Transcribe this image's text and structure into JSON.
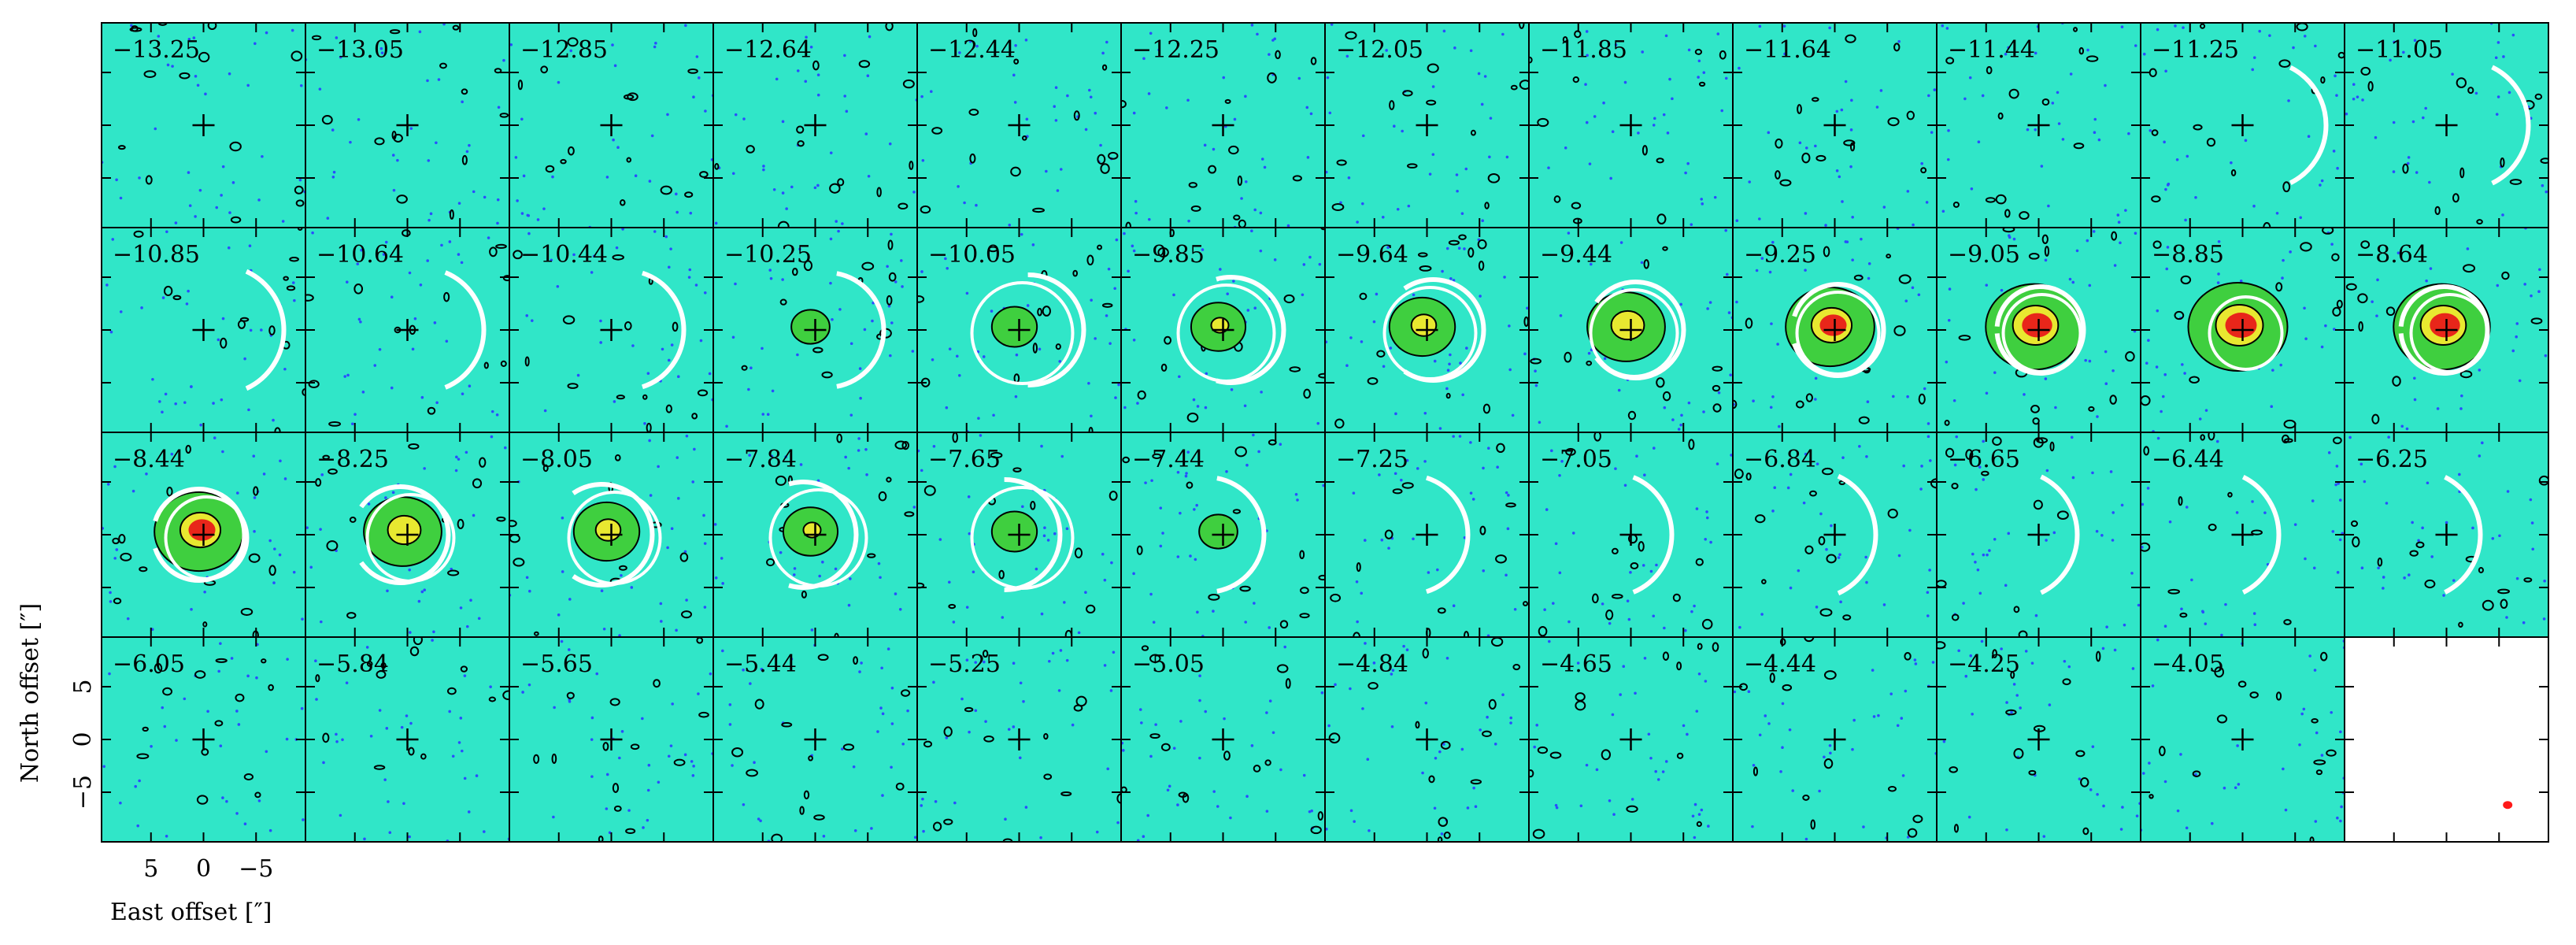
{
  "chart_data": {
    "type": "channel-map",
    "xlabel": "East offset [″]",
    "ylabel": "North offset [″]",
    "panels": [
      "−13.25",
      "−13.05",
      "−12.85",
      "−12.64",
      "−12.44",
      "−12.25",
      "−12.05",
      "−11.85",
      "−11.64",
      "−11.44",
      "−11.25",
      "−11.05",
      "−10.85",
      "−10.64",
      "−10.44",
      "−10.25",
      "−10.05",
      "−9.85",
      "−9.64",
      "−9.44",
      "−9.25",
      "−9.05",
      "−8.85",
      "−8.64",
      "−8.44",
      "−8.25",
      "−8.05",
      "−7.84",
      "−7.65",
      "−7.44",
      "−7.25",
      "−7.05",
      "−6.84",
      "−6.65",
      "−6.44",
      "−6.25",
      "−6.05",
      "−5.84",
      "−5.65",
      "−5.44",
      "−5.25",
      "−5.05",
      "−4.84",
      "−4.65",
      "−4.44",
      "−4.25",
      "−4.05"
    ],
    "xlim": [
      9.7,
      -9.7
    ],
    "ylim": [
      -9.7,
      9.7
    ],
    "xticks": [
      5,
      0,
      {
        "value": -5,
        "label": "−5"
      }
    ],
    "yticks": [
      {
        "value": -5,
        "label": "−5"
      },
      0,
      5
    ],
    "background_color": "#30e6c8",
    "beam_color": "#ff1a1a"
  }
}
